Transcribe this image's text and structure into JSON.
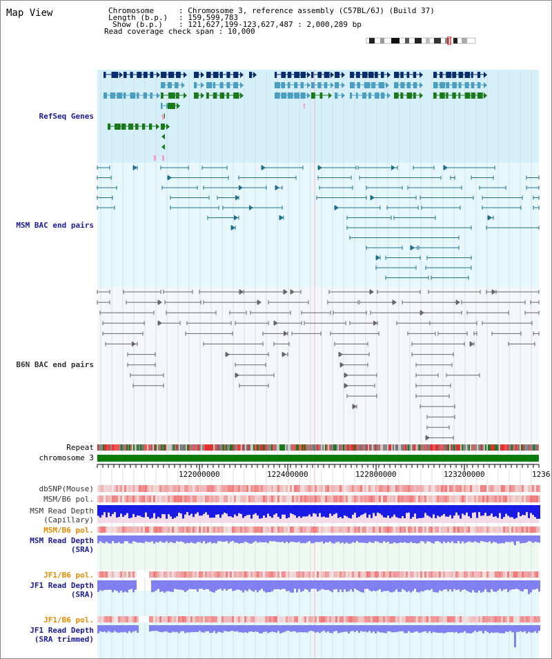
{
  "map_title": "Map View",
  "info": {
    "chromosome_key": "Chromosome",
    "chromosome_val": "Chromosome 3, reference assembly (C57BL/6J) (Build 37)",
    "length_key": "Length (b.p.)",
    "length_val": "159,599,783",
    "show_key": "Show (b.p.)",
    "show_val": "121,627,199-123,627,487 : 2,000,289 bp",
    "span_key": "Read coverage check span",
    "span_val": "10,000",
    "sep": ":"
  },
  "tracks": {
    "refseq": "RefSeq Genes",
    "msm_bac": "MSM BAC end pairs",
    "b6n_bac": "B6N BAC end pairs",
    "repeat": "Repeat",
    "chromosome": "chromosome 3",
    "dbsnp": "dbSNP(Mouse)",
    "msm_b6_pol": "MSM/B6 pol.",
    "msm_depth_cap_1": "MSM Read Depth",
    "msm_depth_cap_2": "(Capillary)",
    "msm_b6_pol2": "MSM/B6 pol.",
    "msm_depth_sra_1": "MSM Read Depth",
    "msm_depth_sra_2": "(SRA)",
    "jf1_b6_pol": "JF1/B6 pol.",
    "jf1_depth_sra_1": "JF1 Read Depth",
    "jf1_depth_sra_2": "(SRA)",
    "jf1_b6_pol2": "JF1/B6 pol.",
    "jf1_depth_trim_1": "JF1 Read Depth",
    "jf1_depth_trim_2": "(SRA trimmed)"
  },
  "ruler": {
    "ticks": [
      "122000000",
      "122400000",
      "122800000",
      "123200000",
      "1236"
    ]
  },
  "colors": {
    "refseq_bg": "#d6f0fa",
    "bac_bg": "#e6f8fb",
    "b6n_bg": "#f4f6fa",
    "gene_navy": "#0b2d6b",
    "gene_teal": "#4a9ec2",
    "gene_green": "#1a7a1a",
    "bac_line": "#1f6f8b",
    "b6n_line": "#666666",
    "chrom_green": "#0a7a0a",
    "depth_blue": "#1a1ae6",
    "depth_light": "#8080f0",
    "pol_red": "#f04848"
  }
}
